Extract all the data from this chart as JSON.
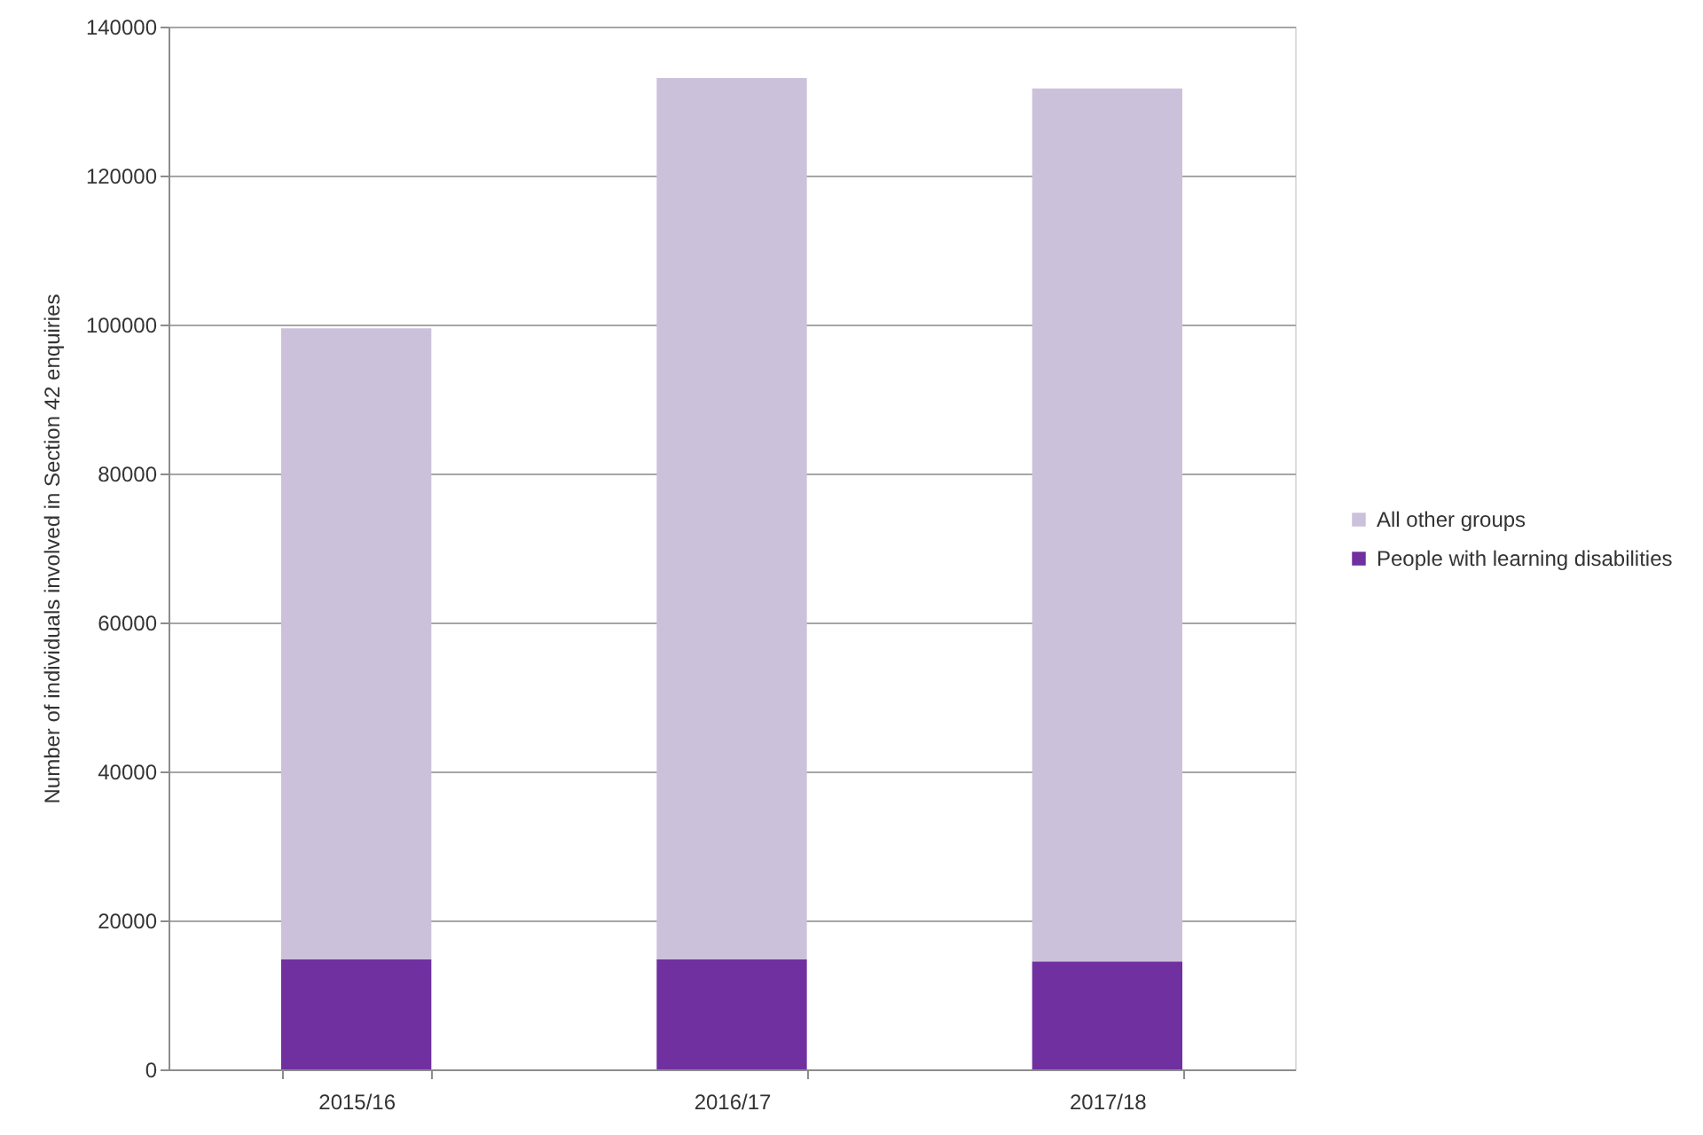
{
  "chart_data": {
    "type": "bar",
    "ylabel": "Number of individuals involved in Section 42 enquiries",
    "categories": [
      "2015/16",
      "2016/17",
      "2017/18"
    ],
    "stacked": true,
    "series": [
      {
        "name": "People with learning disabilities",
        "color": "#7030a0",
        "values": [
          14800,
          14800,
          14500
        ]
      },
      {
        "name": "All other groups",
        "color": "#ccc1da",
        "values": [
          84700,
          118300,
          117200
        ]
      }
    ],
    "ylim": [
      0,
      140000
    ],
    "yticks": [
      0,
      20000,
      40000,
      60000,
      80000,
      100000,
      120000,
      140000
    ],
    "grid": "y",
    "legend": "right"
  }
}
